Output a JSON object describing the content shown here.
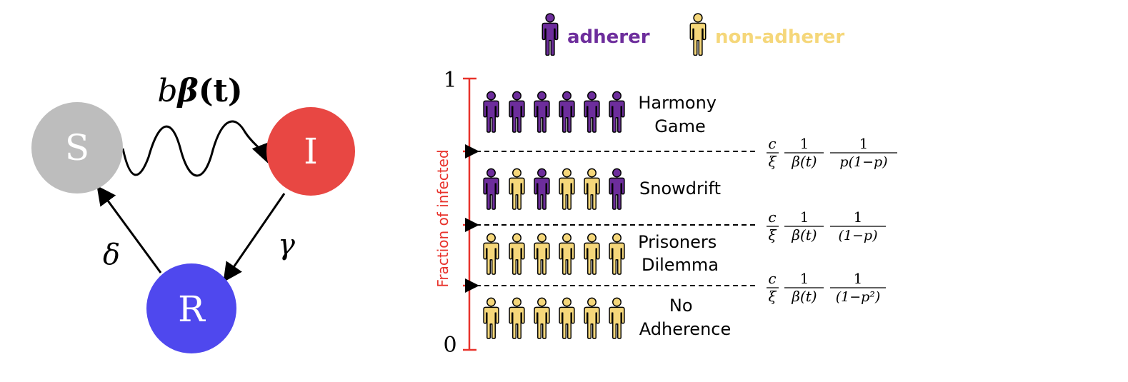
{
  "compartments": {
    "susceptible": {
      "label": "S",
      "color": "#bdbdbd"
    },
    "infected": {
      "label": "I",
      "color": "#e84743"
    },
    "recovered": {
      "label": "R",
      "color": "#4f48ee"
    }
  },
  "rates": {
    "infection": {
      "b": "b",
      "beta": "β",
      "arg": "(t)"
    },
    "recovery": "γ",
    "waning": "δ"
  },
  "legend": {
    "adherer": {
      "label": "adherer",
      "color": "#6d2d9c"
    },
    "non_adherer": {
      "label": "non-adherer",
      "color": "#f5d77a"
    }
  },
  "axis": {
    "label": "Fraction of infected",
    "top": "1",
    "bottom": "0",
    "color": "#e8322b"
  },
  "regions": [
    {
      "name": "Harmony Game",
      "line1": "Harmony",
      "line2": "Game",
      "pattern": [
        "A",
        "A",
        "A",
        "A",
        "A",
        "A"
      ]
    },
    {
      "name": "Snowdrift",
      "line1": "Snowdrift",
      "line2": "",
      "pattern": [
        "A",
        "N",
        "A",
        "N",
        "N",
        "A"
      ]
    },
    {
      "name": "Prisoners Dilemma",
      "line1": "Prisoners",
      "line2": "Dilemma",
      "pattern": [
        "N",
        "N",
        "N",
        "N",
        "N",
        "N"
      ]
    },
    {
      "name": "No Adherence",
      "line1": "No",
      "line2": "Adherence",
      "pattern": [
        "N",
        "N",
        "N",
        "N",
        "N",
        "N"
      ]
    }
  ],
  "thresholds": [
    {
      "c": "c",
      "xi": "ξ",
      "one_a": "1",
      "beta_t": "β(t)",
      "one_b": "1",
      "den": "p(1−p)"
    },
    {
      "c": "c",
      "xi": "ξ",
      "one_a": "1",
      "beta_t": "β(t)",
      "one_b": "1",
      "den": "(1−p)"
    },
    {
      "c": "c",
      "xi": "ξ",
      "one_a": "1",
      "beta_t": "β(t)",
      "one_b": "1",
      "den": "(1−p²)"
    }
  ]
}
